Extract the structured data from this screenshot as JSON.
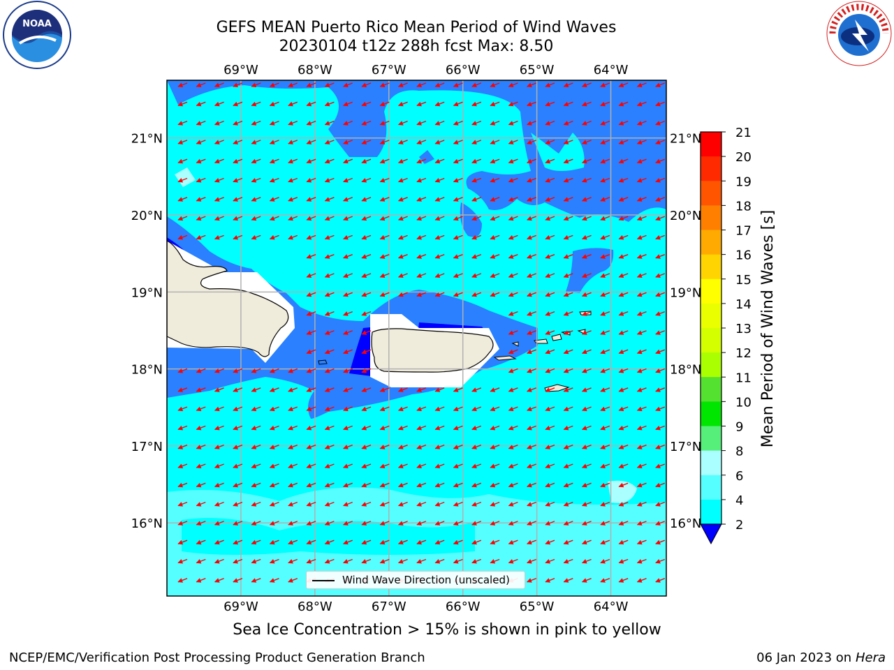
{
  "header": {
    "title_line1": "GEFS MEAN Puerto Rico Mean Period of Wind Waves",
    "title_line2": "20230104 t12z 288h fcst   Max: 8.50"
  },
  "map": {
    "lon_ticks_top": [
      "69°W",
      "68°W",
      "67°W",
      "66°W",
      "65°W",
      "64°W"
    ],
    "lon_ticks_bottom": [
      "69°W",
      "68°W",
      "67°W",
      "66°W",
      "65°W",
      "64°W"
    ],
    "lat_ticks_left": [
      "21°N",
      "20°N",
      "19°N",
      "18°N",
      "17°N",
      "16°N"
    ],
    "lat_ticks_right": [
      "21°N",
      "20°N",
      "19°N",
      "18°N",
      "17°N",
      "16°N"
    ],
    "extent": {
      "lon_min": -70.0,
      "lon_max": -63.25,
      "lat_min": 15.05,
      "lat_max": 21.75
    },
    "wind_wave_direction": "west-southwest",
    "legend_label": "Wind Wave Direction (unscaled)"
  },
  "colorbar": {
    "label": "Mean Period of Wind Waves [s]",
    "ticks": [
      "21",
      "20",
      "19",
      "18",
      "17",
      "16",
      "15",
      "14",
      "13",
      "12",
      "11",
      "10",
      "9",
      "8",
      "6",
      "4",
      "2"
    ],
    "colors": [
      "#ff0000",
      "#ff2a00",
      "#ff5500",
      "#ff8000",
      "#ffaa00",
      "#ffd400",
      "#ffff00",
      "#eaff00",
      "#d4ff00",
      "#aaff00",
      "#55e12f",
      "#00e600",
      "#55ef7a",
      "#aaffff",
      "#55ffff",
      "#00ffff",
      "#2a80ff"
    ],
    "under_color": "#0000ff"
  },
  "colors": {
    "ocean_light": "#00ffff",
    "ocean_lighter": "#55ffff",
    "ocean_pale": "#aaffff",
    "ocean_mid": "#2a80ff",
    "ocean_deep": "#0000ff",
    "land": "#f0ecdc",
    "arrow": "#ff0000",
    "grid": "#b0b0b0"
  },
  "note": "Sea Ice Concentration > 15% is shown in pink to yellow",
  "footer": {
    "left": "NCEP/EMC/Verification Post Processing Product Generation Branch",
    "right_date": "06 Jan 2023 on",
    "right_machine": "Hera"
  },
  "logos": {
    "left": "noaa-logo",
    "right": "nws-logo"
  }
}
